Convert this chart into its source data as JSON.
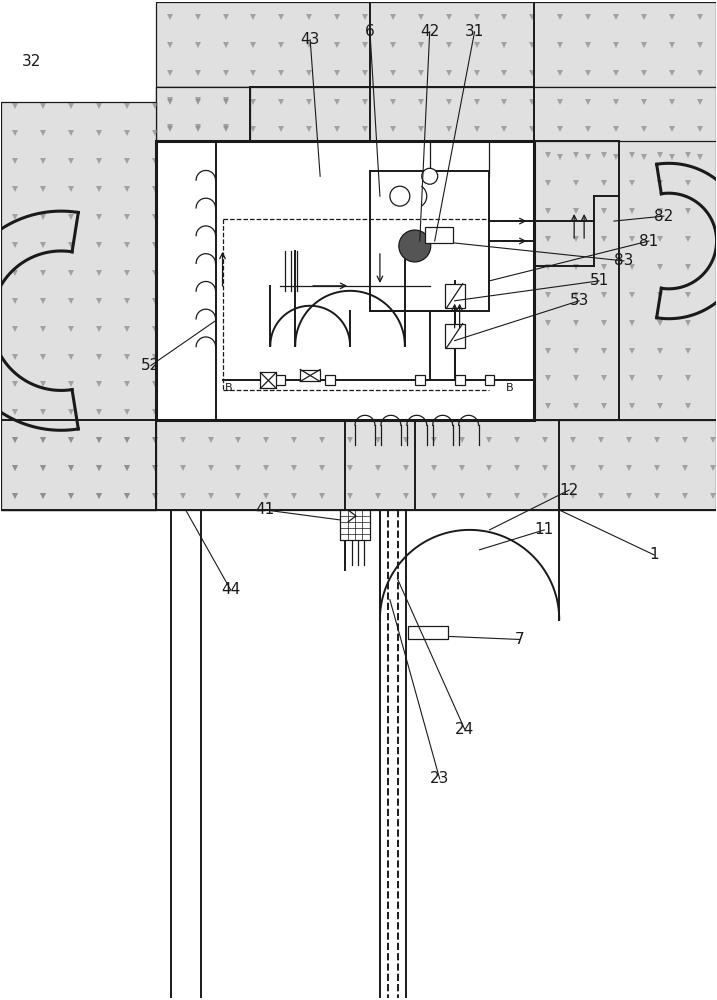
{
  "bg_color": "#ffffff",
  "lc": "#1a1a1a",
  "concrete_color": "#e0e0e0",
  "concrete_tri_color": "#888888",
  "figsize": [
    7.17,
    10.0
  ],
  "dpi": 100,
  "lw_main": 1.4,
  "lw_thin": 0.9,
  "lw_thick": 2.2,
  "label_font": 11
}
